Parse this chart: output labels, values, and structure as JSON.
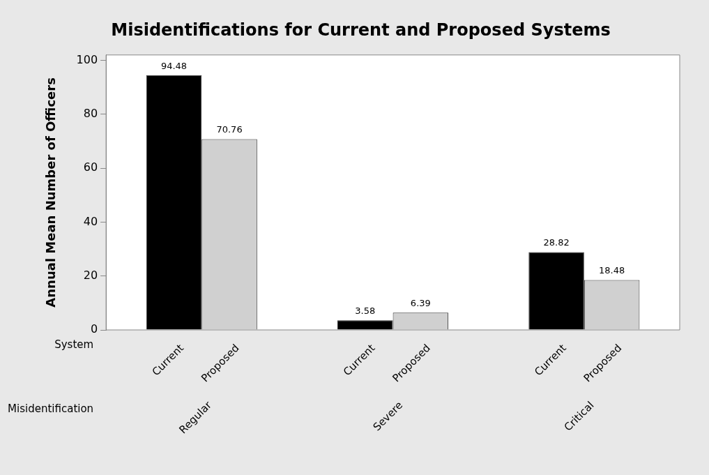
{
  "chart_data": {
    "type": "bar",
    "title": "Misidentifications for Current and Proposed Systems",
    "ylabel": "Annual Mean Number of Officers",
    "xlabel": "Misidentification",
    "legend_title": "System",
    "categories": [
      "Regular",
      "Severe",
      "Critical"
    ],
    "series": [
      {
        "name": "Current",
        "color": "#000000",
        "values": [
          94.48,
          3.58,
          28.82
        ]
      },
      {
        "name": "Proposed",
        "color": "#d0d0d0",
        "values": [
          70.76,
          6.39,
          18.48
        ]
      }
    ],
    "ylim": [
      0,
      102
    ],
    "yticks": [
      0,
      20,
      40,
      60,
      80,
      100
    ],
    "data_labels": true,
    "grid": false,
    "legend": false
  }
}
